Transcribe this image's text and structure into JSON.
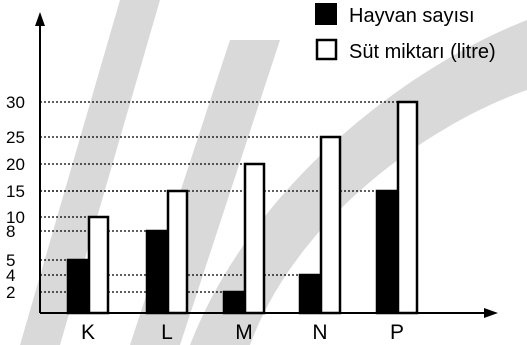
{
  "chart_data": {
    "type": "bar",
    "categories": [
      "K",
      "L",
      "M",
      "N",
      "P"
    ],
    "series": [
      {
        "name": "Hayvan sayısı",
        "values": [
          5,
          8,
          2,
          4,
          15
        ],
        "fill": "#000000"
      },
      {
        "name": "Süt miktarı (litre)",
        "values": [
          10,
          15,
          20,
          25,
          30
        ],
        "fill": "#ffffff"
      }
    ],
    "y_ticks": [
      2,
      4,
      5,
      8,
      10,
      15,
      20,
      25,
      30
    ],
    "grid": "dotted lines from y-axis to bar tops",
    "legend": "top-right",
    "title": "",
    "xlabel": "",
    "ylabel": ""
  }
}
